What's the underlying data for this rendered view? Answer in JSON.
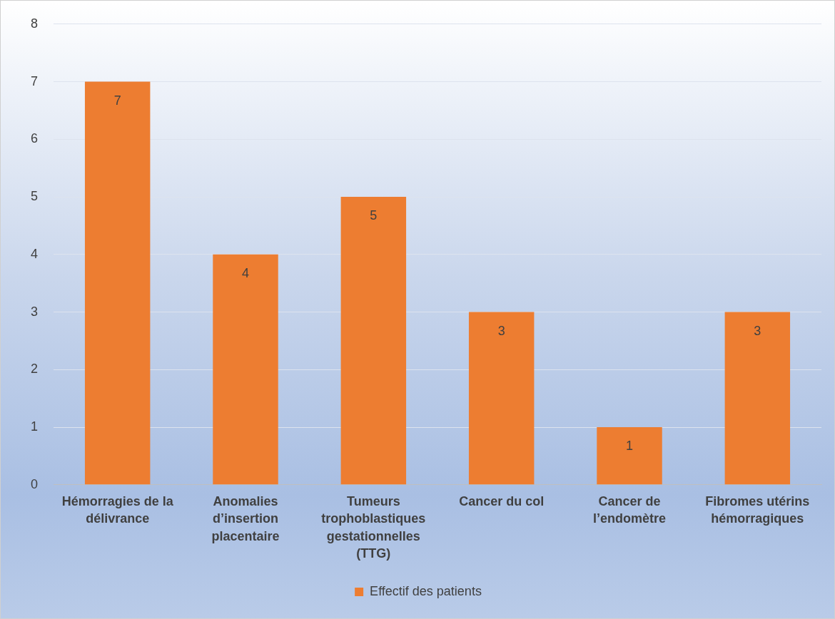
{
  "chart_data": {
    "type": "bar",
    "categories": [
      "Hémorragies de la délivrance",
      "Anomalies d’insertion placentaire",
      "Tumeurs trophoblastiques gestationnelles (TTG)",
      "Cancer du col",
      "Cancer de l’endomètre",
      "Fibromes utérins hémorragiques"
    ],
    "series": [
      {
        "name": "Effectif des patients",
        "color": "#ed7d31",
        "values": [
          7,
          4,
          5,
          3,
          1,
          3
        ]
      }
    ],
    "ylim": [
      0,
      8
    ],
    "yticks": [
      0,
      1,
      2,
      3,
      4,
      5,
      6,
      7,
      8
    ],
    "grid": "y",
    "legend": "bottom",
    "data_labels": true
  }
}
